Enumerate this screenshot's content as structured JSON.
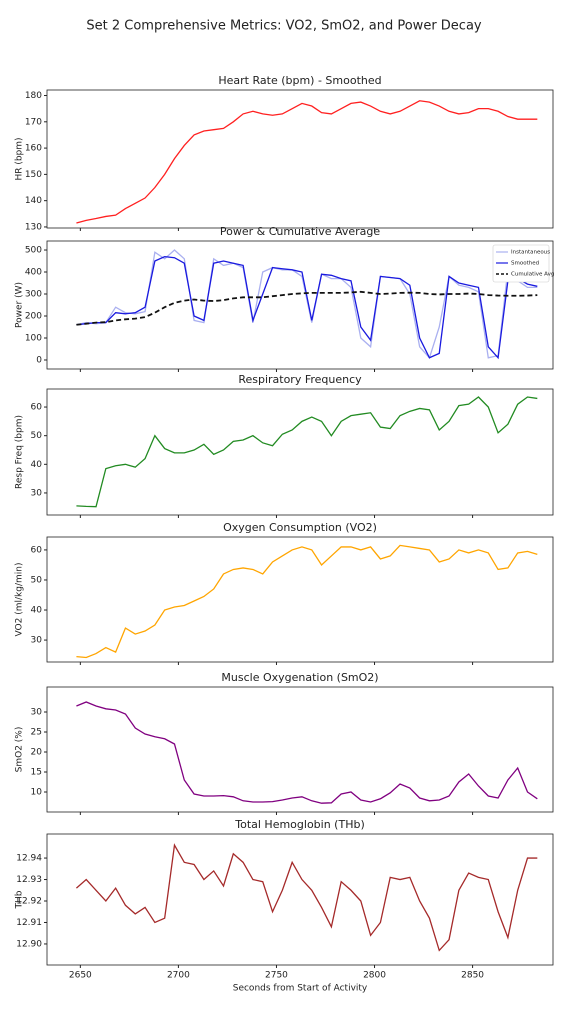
{
  "title": "Set 2 Comprehensive Metrics: VO2, SmO2, and Power Decay",
  "chart_data": [
    {
      "type": "line",
      "title": "Heart Rate (bpm) - Smoothed",
      "ylabel": "HR (bpm)",
      "x": [
        2648,
        2653,
        2658,
        2663,
        2668,
        2673,
        2678,
        2683,
        2688,
        2693,
        2698,
        2703,
        2708,
        2713,
        2718,
        2723,
        2728,
        2733,
        2738,
        2743,
        2748,
        2753,
        2758,
        2763,
        2768,
        2773,
        2778,
        2783,
        2788,
        2793,
        2798,
        2803,
        2808,
        2813,
        2818,
        2823,
        2828,
        2833,
        2838,
        2843,
        2848,
        2853,
        2858,
        2863,
        2868,
        2873,
        2878,
        2883
      ],
      "series": [
        {
          "color": "#ff2020",
          "values": [
            131.5,
            132.5,
            133.2,
            134,
            134.5,
            137,
            139,
            141,
            145,
            150,
            156,
            161,
            165,
            166.5,
            167,
            167.5,
            170,
            173,
            174,
            173,
            172.5,
            173,
            175,
            177,
            176,
            173.5,
            173,
            175,
            177,
            177.5,
            176,
            174,
            173,
            174,
            176,
            178,
            177.5,
            176,
            174,
            173,
            173.5,
            175,
            175,
            174,
            172,
            171,
            171,
            171
          ]
        }
      ],
      "xlim": [
        2633,
        2891
      ],
      "xticks": [
        2650,
        2700,
        2750,
        2800,
        2850
      ],
      "ylim": [
        129.6,
        182.1
      ],
      "yticks": [
        130,
        140,
        150,
        160,
        170,
        180
      ]
    },
    {
      "type": "line",
      "title": "Power & Cumulative Average",
      "ylabel": "Power (W)",
      "legend": "upper right",
      "x": [
        2648,
        2653,
        2658,
        2663,
        2668,
        2673,
        2678,
        2683,
        2688,
        2693,
        2698,
        2703,
        2708,
        2713,
        2718,
        2723,
        2728,
        2733,
        2738,
        2743,
        2748,
        2753,
        2758,
        2763,
        2768,
        2773,
        2778,
        2783,
        2788,
        2793,
        2798,
        2803,
        2808,
        2813,
        2818,
        2823,
        2828,
        2833,
        2838,
        2843,
        2848,
        2853,
        2858,
        2863,
        2868,
        2873,
        2878,
        2883
      ],
      "series": [
        {
          "name": "Instantaneous",
          "color": "#aab0f0",
          "linestyle": "solid",
          "values": [
            160,
            170,
            165,
            170,
            240,
            215,
            210,
            220,
            490,
            460,
            500,
            460,
            180,
            170,
            460,
            430,
            440,
            420,
            170,
            400,
            420,
            410,
            410,
            380,
            170,
            390,
            370,
            370,
            330,
            100,
            60,
            380,
            375,
            370,
            300,
            60,
            10,
            150,
            380,
            340,
            330,
            310,
            10,
            20,
            410,
            360,
            330,
            330
          ]
        },
        {
          "name": "Smoothed",
          "color": "#1a1adf",
          "linestyle": "solid",
          "values": [
            160,
            165,
            170,
            170,
            215,
            210,
            215,
            240,
            450,
            470,
            465,
            440,
            200,
            180,
            440,
            450,
            440,
            430,
            180,
            300,
            420,
            415,
            410,
            400,
            180,
            390,
            385,
            370,
            360,
            150,
            90,
            380,
            375,
            370,
            340,
            100,
            10,
            30,
            380,
            350,
            340,
            330,
            60,
            10,
            360,
            370,
            345,
            335
          ]
        },
        {
          "name": "Cumulative Avg",
          "color": "#111111",
          "linestyle": "dashed",
          "values": [
            160,
            165,
            170,
            172,
            180,
            185,
            188,
            195,
            215,
            240,
            260,
            270,
            275,
            270,
            268,
            272,
            280,
            285,
            285,
            285,
            290,
            295,
            300,
            303,
            305,
            305,
            305,
            305,
            307,
            310,
            305,
            300,
            302,
            305,
            306,
            305,
            300,
            298,
            300,
            300,
            302,
            300,
            295,
            293,
            292,
            292,
            293,
            295
          ]
        }
      ],
      "xlim": [
        2633,
        2891
      ],
      "xticks": [
        2650,
        2700,
        2750,
        2800,
        2850
      ],
      "ylim": [
        -41,
        541
      ],
      "yticks": [
        0,
        100,
        200,
        300,
        400,
        500
      ]
    },
    {
      "type": "line",
      "title": "Respiratory Frequency",
      "ylabel": "Resp Freq (bpm)",
      "x": [
        2648,
        2653,
        2658,
        2663,
        2668,
        2673,
        2678,
        2683,
        2688,
        2693,
        2698,
        2703,
        2708,
        2713,
        2718,
        2723,
        2728,
        2733,
        2738,
        2743,
        2748,
        2753,
        2758,
        2763,
        2768,
        2773,
        2778,
        2783,
        2788,
        2793,
        2798,
        2803,
        2808,
        2813,
        2818,
        2823,
        2828,
        2833,
        2838,
        2843,
        2848,
        2853,
        2858,
        2863,
        2868,
        2873,
        2878,
        2883
      ],
      "series": [
        {
          "color": "#228b22",
          "values": [
            25.5,
            25.3,
            25.2,
            38.5,
            39.5,
            40,
            39,
            42,
            50,
            45.5,
            44,
            44,
            45,
            47,
            43.5,
            45,
            48,
            48.5,
            50,
            47.5,
            46.5,
            50.5,
            52,
            55,
            56.5,
            55,
            50,
            55,
            57,
            57.5,
            58,
            53,
            52.5,
            57,
            58.5,
            59.5,
            59,
            52,
            55,
            60.5,
            61,
            63.5,
            60,
            51,
            54,
            61,
            63.5,
            63
          ]
        }
      ],
      "xlim": [
        2633,
        2891
      ],
      "xticks": [
        2650,
        2700,
        2750,
        2800,
        2850
      ],
      "ylim": [
        22.3,
        66.3
      ],
      "yticks": [
        30,
        40,
        50,
        60
      ]
    },
    {
      "type": "line",
      "title": "Oxygen Consumption (VO2)",
      "ylabel": "VO2 (ml/kg/min)",
      "x": [
        2648,
        2653,
        2658,
        2663,
        2668,
        2673,
        2678,
        2683,
        2688,
        2693,
        2698,
        2703,
        2708,
        2713,
        2718,
        2723,
        2728,
        2733,
        2738,
        2743,
        2748,
        2753,
        2758,
        2763,
        2768,
        2773,
        2778,
        2783,
        2788,
        2793,
        2798,
        2803,
        2808,
        2813,
        2818,
        2823,
        2828,
        2833,
        2838,
        2843,
        2848,
        2853,
        2858,
        2863,
        2868,
        2873,
        2878,
        2883
      ],
      "series": [
        {
          "color": "#ffa500",
          "values": [
            24.5,
            24.2,
            25.5,
            27.5,
            26,
            34,
            32,
            33,
            35,
            40,
            41,
            41.5,
            43,
            44.5,
            47,
            52,
            53.5,
            54,
            53.5,
            52,
            56,
            58,
            60,
            61,
            60,
            55,
            58,
            61,
            61,
            60,
            61,
            57,
            58,
            61.5,
            61,
            60.5,
            60,
            56,
            57,
            60,
            59,
            60,
            59,
            53.5,
            54,
            59,
            59.5,
            58.5
          ]
        }
      ],
      "xlim": [
        2633,
        2891
      ],
      "xticks": [
        2650,
        2700,
        2750,
        2800,
        2850
      ],
      "ylim": [
        22.7,
        64.3
      ],
      "yticks": [
        30,
        40,
        50,
        60
      ]
    },
    {
      "type": "line",
      "title": "Muscle Oxygenation (SmO2)",
      "ylabel": "SmO2 (%)",
      "x": [
        2648,
        2653,
        2658,
        2663,
        2668,
        2673,
        2678,
        2683,
        2688,
        2693,
        2698,
        2703,
        2708,
        2713,
        2718,
        2723,
        2728,
        2733,
        2738,
        2743,
        2748,
        2753,
        2758,
        2763,
        2768,
        2773,
        2778,
        2783,
        2788,
        2793,
        2798,
        2803,
        2808,
        2813,
        2818,
        2823,
        2828,
        2833,
        2838,
        2843,
        2848,
        2853,
        2858,
        2863,
        2868,
        2873,
        2878,
        2883
      ],
      "series": [
        {
          "color": "#800080",
          "values": [
            31.5,
            32.5,
            31.5,
            30.8,
            30.5,
            29.5,
            26,
            24.5,
            23.8,
            23.3,
            22,
            13,
            9.5,
            9,
            9,
            9.1,
            8.8,
            7.8,
            7.5,
            7.5,
            7.6,
            8,
            8.5,
            8.8,
            7.8,
            7.2,
            7.3,
            9.5,
            10,
            8,
            7.5,
            8.3,
            9.8,
            12,
            11,
            8.5,
            7.8,
            8,
            9,
            12.5,
            14.5,
            11.5,
            9,
            8.5,
            13,
            16,
            10,
            8.3
          ]
        }
      ],
      "xlim": [
        2633,
        2891
      ],
      "xticks": [
        2650,
        2700,
        2750,
        2800,
        2850
      ],
      "ylim": [
        5,
        36.25
      ],
      "yticks": [
        10,
        15,
        20,
        25,
        30
      ]
    },
    {
      "type": "line",
      "title": "Total Hemoglobin (THb)",
      "ylabel": "THb",
      "xlabel": "Seconds from Start of Activity",
      "x": [
        2648,
        2653,
        2658,
        2663,
        2668,
        2673,
        2678,
        2683,
        2688,
        2693,
        2698,
        2703,
        2708,
        2713,
        2718,
        2723,
        2728,
        2733,
        2738,
        2743,
        2748,
        2753,
        2758,
        2763,
        2768,
        2773,
        2778,
        2783,
        2788,
        2793,
        2798,
        2803,
        2808,
        2813,
        2818,
        2823,
        2828,
        2833,
        2838,
        2843,
        2848,
        2853,
        2858,
        2863,
        2868,
        2873,
        2878,
        2883
      ],
      "series": [
        {
          "color": "#a52a2a",
          "values": [
            12.926,
            12.93,
            12.925,
            12.92,
            12.926,
            12.918,
            12.914,
            12.917,
            12.91,
            12.912,
            12.946,
            12.938,
            12.937,
            12.93,
            12.934,
            12.927,
            12.942,
            12.938,
            12.93,
            12.929,
            12.915,
            12.925,
            12.938,
            12.93,
            12.925,
            12.917,
            12.908,
            12.929,
            12.925,
            12.92,
            12.904,
            12.91,
            12.931,
            12.93,
            12.931,
            12.92,
            12.912,
            12.897,
            12.902,
            12.925,
            12.933,
            12.931,
            12.93,
            12.915,
            12.903,
            12.925,
            12.94,
            12.94
          ]
        }
      ],
      "xlim": [
        2633,
        2891
      ],
      "xticks": [
        2650,
        2700,
        2750,
        2800,
        2850
      ],
      "ylim": [
        12.8902,
        12.9512
      ],
      "yticks": [
        {
          "value": 12.9,
          "label": "12.90"
        },
        12.91,
        12.92,
        12.93,
        12.94
      ]
    }
  ]
}
